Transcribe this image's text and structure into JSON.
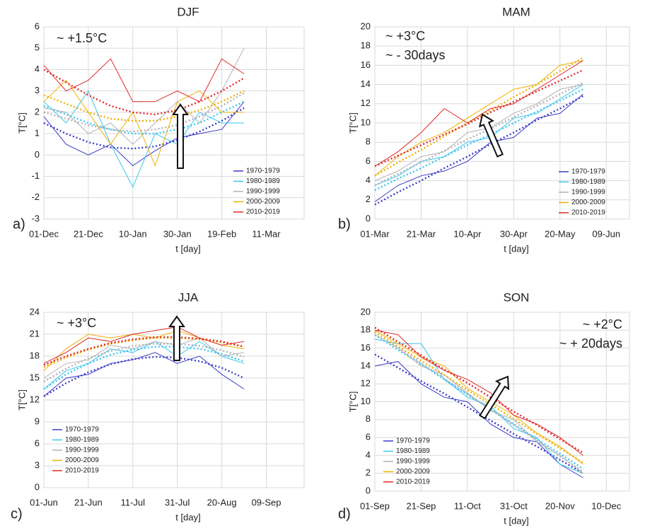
{
  "chart_data": [
    {
      "type": "line",
      "title": "DJF",
      "panel_label": "a)",
      "x_label": "t [day]",
      "y_label": "T[°C]",
      "annotations": [
        "~ +1.5°C"
      ],
      "legend": "lower-right",
      "grid": true,
      "x": [
        0,
        10,
        20,
        30,
        40,
        50,
        60,
        70,
        80,
        90
      ],
      "xlim": [
        0,
        117
      ],
      "xticks": [
        {
          "value": 0,
          "label": "01-Dec"
        },
        {
          "value": 20,
          "label": "21-Dec"
        },
        {
          "value": 40,
          "label": "10-Jan"
        },
        {
          "value": 60,
          "label": "30-Jan"
        },
        {
          "value": 80,
          "label": "19-Feb"
        },
        {
          "value": 100,
          "label": "11-Mar"
        }
      ],
      "ylim": [
        -3,
        6
      ],
      "yticks": [
        -3,
        -2,
        -1,
        0,
        1,
        2,
        3,
        4,
        5,
        6
      ],
      "series": [
        {
          "name": "1970-1979",
          "color": "#3a3ac8",
          "values": [
            1.8,
            0.5,
            0.0,
            0.5,
            -0.5,
            0.2,
            0.8,
            1.0,
            1.2,
            2.5
          ],
          "trend": [
            1.5,
            1.0,
            0.6,
            0.35,
            0.3,
            0.4,
            0.7,
            1.1,
            1.6,
            2.2
          ]
        },
        {
          "name": "1980-1989",
          "color": "#38c6f0",
          "values": [
            2.5,
            1.5,
            3.0,
            0.5,
            -1.5,
            1.0,
            0.5,
            2.0,
            1.5,
            1.5
          ],
          "trend": [
            2.3,
            1.9,
            1.5,
            1.2,
            1.0,
            1.0,
            1.2,
            1.5,
            2.0,
            2.5
          ]
        },
        {
          "name": "1990-1999",
          "color": "#b0b0b8",
          "values": [
            2.2,
            2.0,
            1.0,
            1.5,
            0.5,
            1.5,
            2.5,
            1.5,
            3.0,
            5.0
          ],
          "trend": [
            2.0,
            1.7,
            1.4,
            1.2,
            1.1,
            1.2,
            1.4,
            1.8,
            2.3,
            2.9
          ]
        },
        {
          "name": "2000-2009",
          "color": "#f0b000",
          "values": [
            2.5,
            3.5,
            2.0,
            0.5,
            2.0,
            -0.5,
            2.5,
            3.0,
            2.0,
            2.0
          ],
          "trend": [
            2.8,
            2.4,
            2.0,
            1.7,
            1.6,
            1.6,
            1.8,
            2.1,
            2.5,
            3.0
          ]
        },
        {
          "name": "2010-2019",
          "color": "#e02828",
          "values": [
            4.2,
            3.0,
            3.5,
            4.5,
            2.5,
            2.5,
            3.0,
            2.5,
            4.5,
            3.8
          ],
          "trend": [
            4.0,
            3.4,
            2.8,
            2.3,
            2.0,
            1.9,
            2.1,
            2.5,
            3.0,
            3.6
          ]
        }
      ]
    },
    {
      "type": "line",
      "title": "MAM",
      "panel_label": "b)",
      "x_label": "t [day]",
      "y_label": "T[°C]",
      "annotations": [
        "~ +3°C",
        "~ - 30days"
      ],
      "legend": "lower-right",
      "grid": true,
      "x": [
        0,
        10,
        20,
        30,
        40,
        50,
        60,
        70,
        80,
        90
      ],
      "xlim": [
        0,
        110
      ],
      "xticks": [
        {
          "value": 0,
          "label": "01-Mar"
        },
        {
          "value": 20,
          "label": "21-Mar"
        },
        {
          "value": 40,
          "label": "10-Apr"
        },
        {
          "value": 60,
          "label": "30-Apr"
        },
        {
          "value": 80,
          "label": "20-May"
        },
        {
          "value": 100,
          "label": "09-Jun"
        }
      ],
      "ylim": [
        0,
        20
      ],
      "yticks": [
        0,
        2,
        4,
        6,
        8,
        10,
        12,
        14,
        16,
        18,
        20
      ],
      "series": [
        {
          "name": "1970-1979",
          "color": "#3a3ac8",
          "values": [
            1.8,
            3.5,
            4.5,
            5.0,
            6.0,
            8.0,
            8.5,
            10.5,
            11.0,
            13.0
          ],
          "trend": [
            1.5,
            2.8,
            4.0,
            5.3,
            6.5,
            7.8,
            9.0,
            10.3,
            11.5,
            12.8
          ]
        },
        {
          "name": "1980-1989",
          "color": "#38c6f0",
          "values": [
            3.5,
            4.5,
            6.0,
            6.5,
            8.0,
            8.5,
            10.5,
            11.0,
            12.5,
            14.0
          ],
          "trend": [
            3.0,
            4.2,
            5.3,
            6.5,
            7.7,
            8.8,
            10.0,
            11.2,
            12.3,
            13.5
          ]
        },
        {
          "name": "1990-1999",
          "color": "#b0b0b8",
          "values": [
            4.0,
            5.0,
            6.5,
            7.0,
            9.0,
            9.5,
            11.0,
            12.0,
            13.5,
            14.0
          ],
          "trend": [
            3.5,
            4.7,
            5.9,
            7.1,
            8.3,
            9.4,
            10.6,
            11.8,
            13.0,
            14.2
          ]
        },
        {
          "name": "2000-2009",
          "color": "#f0b000",
          "values": [
            4.5,
            6.5,
            8.0,
            9.0,
            10.5,
            12.0,
            13.5,
            14.0,
            16.0,
            16.5
          ],
          "trend": [
            4.5,
            5.9,
            7.2,
            8.6,
            10.0,
            11.3,
            12.7,
            14.0,
            15.4,
            16.8
          ]
        },
        {
          "name": "2010-2019",
          "color": "#e02828",
          "values": [
            5.5,
            7.0,
            9.0,
            11.5,
            10.0,
            11.5,
            12.0,
            13.5,
            15.0,
            16.5
          ],
          "trend": [
            5.5,
            6.6,
            7.7,
            8.8,
            9.9,
            11.1,
            12.2,
            13.3,
            14.4,
            15.5
          ]
        }
      ]
    },
    {
      "type": "line",
      "title": "JJA",
      "panel_label": "c)",
      "x_label": "t [day]",
      "y_label": "T[°C]",
      "annotations": [
        "~ +3°C"
      ],
      "legend": "lower-left",
      "grid": true,
      "x": [
        0,
        10,
        20,
        30,
        40,
        50,
        60,
        70,
        80,
        90
      ],
      "xlim": [
        0,
        117
      ],
      "xticks": [
        {
          "value": 0,
          "label": "01-Jun"
        },
        {
          "value": 20,
          "label": "21-Jun"
        },
        {
          "value": 40,
          "label": "11-Jul"
        },
        {
          "value": 60,
          "label": "31-Jul"
        },
        {
          "value": 80,
          "label": "20-Aug"
        },
        {
          "value": 100,
          "label": "09-Sep"
        }
      ],
      "ylim": [
        0,
        24
      ],
      "yticks": [
        0,
        3,
        6,
        9,
        12,
        15,
        18,
        21,
        24
      ],
      "series": [
        {
          "name": "1970-1979",
          "color": "#3a3ac8",
          "values": [
            12.5,
            15.0,
            15.5,
            17.0,
            17.5,
            18.5,
            17.0,
            18.0,
            15.5,
            13.5
          ],
          "trend": [
            12.5,
            14.3,
            15.8,
            16.9,
            17.6,
            17.9,
            17.8,
            17.3,
            16.4,
            15.0
          ]
        },
        {
          "name": "1980-1989",
          "color": "#38c6f0",
          "values": [
            13.5,
            16.0,
            17.0,
            19.0,
            18.5,
            20.0,
            18.0,
            20.0,
            18.0,
            17.0
          ],
          "trend": [
            13.5,
            15.5,
            17.0,
            18.2,
            18.9,
            19.3,
            19.3,
            19.0,
            18.3,
            17.3
          ]
        },
        {
          "name": "1990-1999",
          "color": "#b0b0b8",
          "values": [
            15.0,
            17.0,
            17.5,
            19.5,
            19.0,
            20.0,
            19.5,
            20.5,
            18.0,
            18.5
          ],
          "trend": [
            14.5,
            16.3,
            17.7,
            18.7,
            19.4,
            19.7,
            19.7,
            19.4,
            18.8,
            17.9
          ]
        },
        {
          "name": "2000-2009",
          "color": "#f0b000",
          "values": [
            16.0,
            19.0,
            21.0,
            20.5,
            21.0,
            20.5,
            21.5,
            20.5,
            19.5,
            19.0
          ],
          "trend": [
            16.5,
            17.8,
            18.9,
            19.7,
            20.2,
            20.5,
            20.5,
            20.3,
            19.9,
            19.3
          ]
        },
        {
          "name": "2010-2019",
          "color": "#e02828",
          "values": [
            17.0,
            18.5,
            20.5,
            20.0,
            21.0,
            21.5,
            22.0,
            20.5,
            19.5,
            20.0
          ],
          "trend": [
            16.8,
            18.0,
            19.0,
            19.8,
            20.3,
            20.6,
            20.6,
            20.4,
            20.0,
            19.3
          ]
        }
      ]
    },
    {
      "type": "line",
      "title": "SON",
      "panel_label": "d)",
      "x_label": "t [day]",
      "y_label": "T[°C]",
      "annotations": [
        "~ +2°C",
        "~ + 20days"
      ],
      "legend": "lower-left",
      "grid": true,
      "x": [
        0,
        10,
        20,
        30,
        40,
        50,
        60,
        70,
        80,
        90
      ],
      "xlim": [
        0,
        110
      ],
      "xticks": [
        {
          "value": 0,
          "label": "01-Sep"
        },
        {
          "value": 20,
          "label": "21-Sep"
        },
        {
          "value": 40,
          "label": "11-Oct"
        },
        {
          "value": 60,
          "label": "31-Oct"
        },
        {
          "value": 80,
          "label": "20-Nov"
        },
        {
          "value": 100,
          "label": "10-Dec"
        }
      ],
      "ylim": [
        0,
        20
      ],
      "yticks": [
        0,
        2,
        4,
        6,
        8,
        10,
        12,
        14,
        16,
        18,
        20
      ],
      "series": [
        {
          "name": "1970-1979",
          "color": "#3a3ac8",
          "values": [
            14.0,
            14.5,
            12.0,
            10.5,
            10.0,
            7.5,
            6.0,
            5.5,
            3.0,
            1.5
          ],
          "trend": [
            15.3,
            13.8,
            12.3,
            10.9,
            9.4,
            7.9,
            6.4,
            5.0,
            3.5,
            2.0
          ]
        },
        {
          "name": "1980-1989",
          "color": "#38c6f0",
          "values": [
            17.0,
            16.5,
            16.5,
            12.5,
            10.5,
            9.5,
            7.0,
            6.0,
            3.0,
            2.0
          ],
          "trend": [
            17.5,
            15.8,
            14.2,
            12.5,
            10.8,
            9.2,
            7.5,
            5.8,
            4.2,
            2.5
          ]
        },
        {
          "name": "1990-1999",
          "color": "#b0b0b8",
          "values": [
            17.5,
            16.0,
            14.0,
            13.0,
            11.0,
            9.0,
            8.0,
            5.5,
            4.0,
            2.0
          ],
          "trend": [
            17.8,
            16.1,
            14.3,
            12.6,
            10.9,
            9.1,
            7.4,
            5.7,
            3.9,
            2.2
          ]
        },
        {
          "name": "2000-2009",
          "color": "#f0b000",
          "values": [
            18.0,
            16.5,
            15.0,
            14.0,
            11.5,
            10.0,
            8.5,
            6.5,
            5.0,
            3.0
          ],
          "trend": [
            17.8,
            16.2,
            14.6,
            13.0,
            11.3,
            9.7,
            8.1,
            6.4,
            4.8,
            3.2
          ]
        },
        {
          "name": "2010-2019",
          "color": "#e02828",
          "values": [
            18.0,
            17.5,
            15.0,
            13.5,
            12.5,
            11.0,
            8.5,
            7.5,
            6.0,
            4.0
          ],
          "trend": [
            18.3,
            16.7,
            15.2,
            13.6,
            12.1,
            10.5,
            8.9,
            7.4,
            5.8,
            4.3
          ]
        }
      ]
    }
  ]
}
